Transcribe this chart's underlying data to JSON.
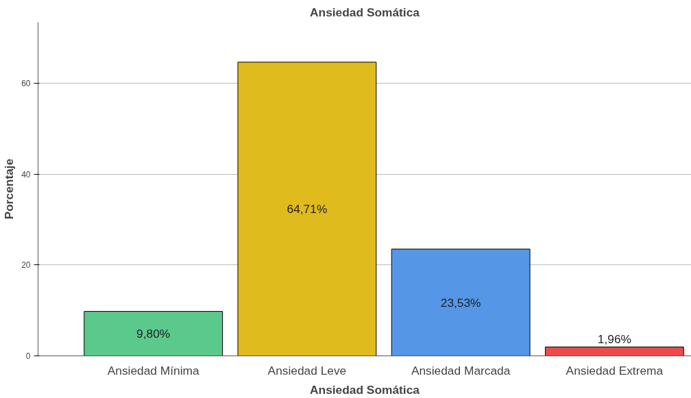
{
  "chart_data": {
    "type": "bar",
    "title": "Ansiedad Somática",
    "xlabel": "Ansiedad Somática",
    "ylabel": "Porcentaje",
    "categories": [
      "Ansiedad Mínima",
      "Ansiedad Leve",
      "Ansiedad Marcada",
      "Ansiedad Extrema"
    ],
    "values": [
      9.8,
      64.71,
      23.53,
      1.96
    ],
    "colors": [
      "#5bc98b",
      "#e0bb1e",
      "#5596e6",
      "#ef4a4a"
    ],
    "value_labels": [
      "9,80%",
      "64,71%",
      "23,53%",
      "1,96%"
    ],
    "ylim": [
      0,
      73.5
    ],
    "yticks": [
      0,
      20,
      40,
      60
    ],
    "grid": "y"
  }
}
